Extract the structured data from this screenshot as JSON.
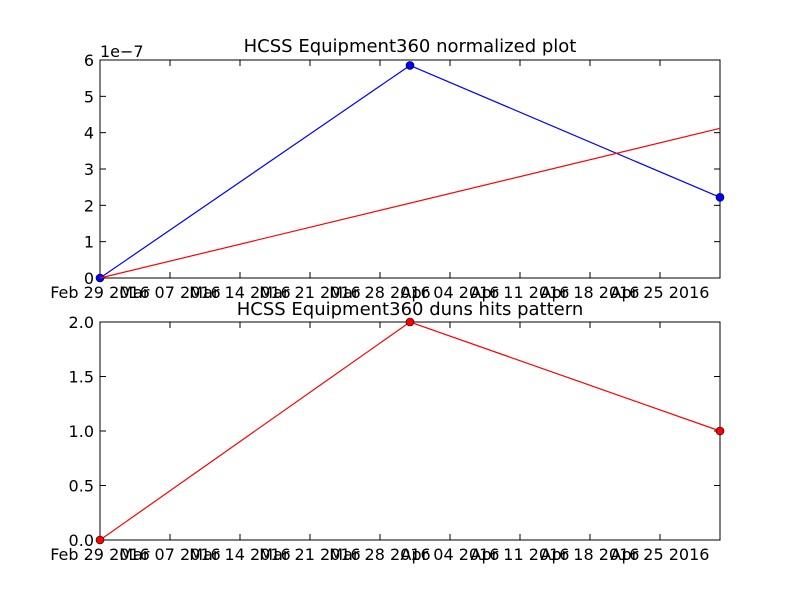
{
  "chart_data": [
    {
      "type": "line",
      "title": "HCSS Equipment360 normalized plot",
      "xlabel": "",
      "ylabel": "",
      "x_tick_labels": [
        "Feb 29 2016",
        "Mar 07 2016",
        "Mar 14 2016",
        "Mar 21 2016",
        "Mar 28 2016",
        "Apr 04 2016",
        "Apr 11 2016",
        "Apr 18 2016",
        "Apr 25 2016"
      ],
      "xlim": [
        "2016-02-29",
        "2016-05-01"
      ],
      "ylim": [
        0,
        6e-07
      ],
      "y_tick_labels": [
        "0",
        "1",
        "2",
        "3",
        "4",
        "5",
        "6"
      ],
      "y_offset_label": "1e−7",
      "grid": false,
      "series": [
        {
          "color": "#0000ff",
          "markers": true,
          "x": [
            "2016-02-29",
            "2016-03-31",
            "2016-05-01"
          ],
          "y": [
            0,
            5.85e-07,
            2.22e-07
          ]
        },
        {
          "color": "#ff0000",
          "markers": false,
          "x": [
            "2016-02-29",
            "2016-05-01"
          ],
          "y": [
            0,
            4.12e-07
          ]
        }
      ]
    },
    {
      "type": "line",
      "title": "HCSS Equipment360 duns hits pattern",
      "xlabel": "",
      "ylabel": "",
      "x_tick_labels": [
        "Feb 29 2016",
        "Mar 07 2016",
        "Mar 14 2016",
        "Mar 21 2016",
        "Mar 28 2016",
        "Apr 04 2016",
        "Apr 11 2016",
        "Apr 18 2016",
        "Apr 25 2016"
      ],
      "xlim": [
        "2016-02-29",
        "2016-05-01"
      ],
      "ylim": [
        0,
        2
      ],
      "y_tick_labels": [
        "0.0",
        "0.5",
        "1.0",
        "1.5",
        "2.0"
      ],
      "grid": false,
      "series": [
        {
          "color": "#ff0000",
          "markers": true,
          "x": [
            "2016-02-29",
            "2016-03-31",
            "2016-05-01"
          ],
          "y": [
            0,
            2,
            1
          ]
        }
      ]
    }
  ]
}
